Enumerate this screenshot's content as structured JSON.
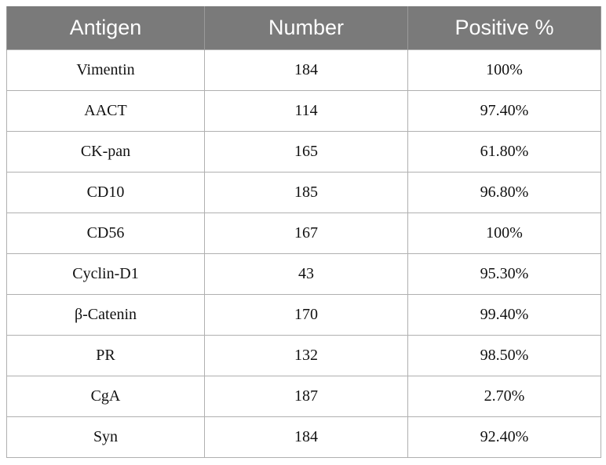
{
  "table": {
    "headers": [
      "Antigen",
      "Number",
      "Positive %"
    ],
    "rows": [
      {
        "antigen": "Vimentin",
        "number": "184",
        "positive": "100%"
      },
      {
        "antigen": "AACT",
        "number": "114",
        "positive": "97.40%"
      },
      {
        "antigen": "CK-pan",
        "number": "165",
        "positive": "61.80%"
      },
      {
        "antigen": "CD10",
        "number": "185",
        "positive": "96.80%"
      },
      {
        "antigen": "CD56",
        "number": "167",
        "positive": "100%"
      },
      {
        "antigen": "Cyclin-D1",
        "number": "43",
        "positive": "95.30%"
      },
      {
        "antigen": "β-Catenin",
        "number": "170",
        "positive": "99.40%"
      },
      {
        "antigen": "PR",
        "number": "132",
        "positive": "98.50%"
      },
      {
        "antigen": "CgA",
        "number": "187",
        "positive": "2.70%"
      },
      {
        "antigen": "Syn",
        "number": "184",
        "positive": "92.40%"
      }
    ]
  },
  "colors": {
    "header_background": "#7a7a7a",
    "header_text": "#ffffff",
    "border": "#b0b0b0"
  }
}
